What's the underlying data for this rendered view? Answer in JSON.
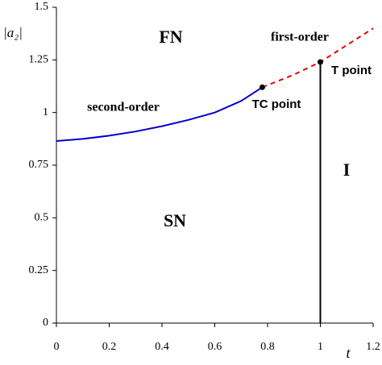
{
  "chart_data": {
    "type": "line",
    "xlabel": "t",
    "ylabel": "|a₂|",
    "xlim": [
      0,
      1.2
    ],
    "xticks": [
      0,
      0.2,
      0.4,
      0.6,
      0.8,
      1,
      1.2
    ],
    "ylim": [
      0,
      1.5
    ],
    "yticks": [
      0,
      0.25,
      0.5,
      0.75,
      1,
      1.25,
      1.5
    ],
    "series": [
      {
        "color": "#0000cc",
        "style": "solid",
        "x": [
          0,
          0.1,
          0.2,
          0.3,
          0.4,
          0.5,
          0.6,
          0.7,
          0.78
        ],
        "values": [
          0.865,
          0.875,
          0.89,
          0.91,
          0.935,
          0.965,
          1.0,
          1.055,
          1.12
        ]
      },
      {
        "color": "#ee0000",
        "style": "dashed",
        "x": [
          0.78,
          0.9,
          1,
          1.1,
          1.2
        ],
        "values": [
          1.12,
          1.18,
          1.24,
          1.32,
          1.4
        ]
      },
      {
        "color": "#000000",
        "style": "solid",
        "x": [
          1,
          1
        ],
        "values": [
          0,
          1.24
        ]
      }
    ],
    "points": [
      {
        "label": "TC point",
        "x": 0.78,
        "y": 1.12
      },
      {
        "label": "T point",
        "x": 1,
        "y": 1.24
      }
    ],
    "annotations": [
      "FN",
      "SN",
      "I",
      "first-order",
      "second-order"
    ]
  }
}
